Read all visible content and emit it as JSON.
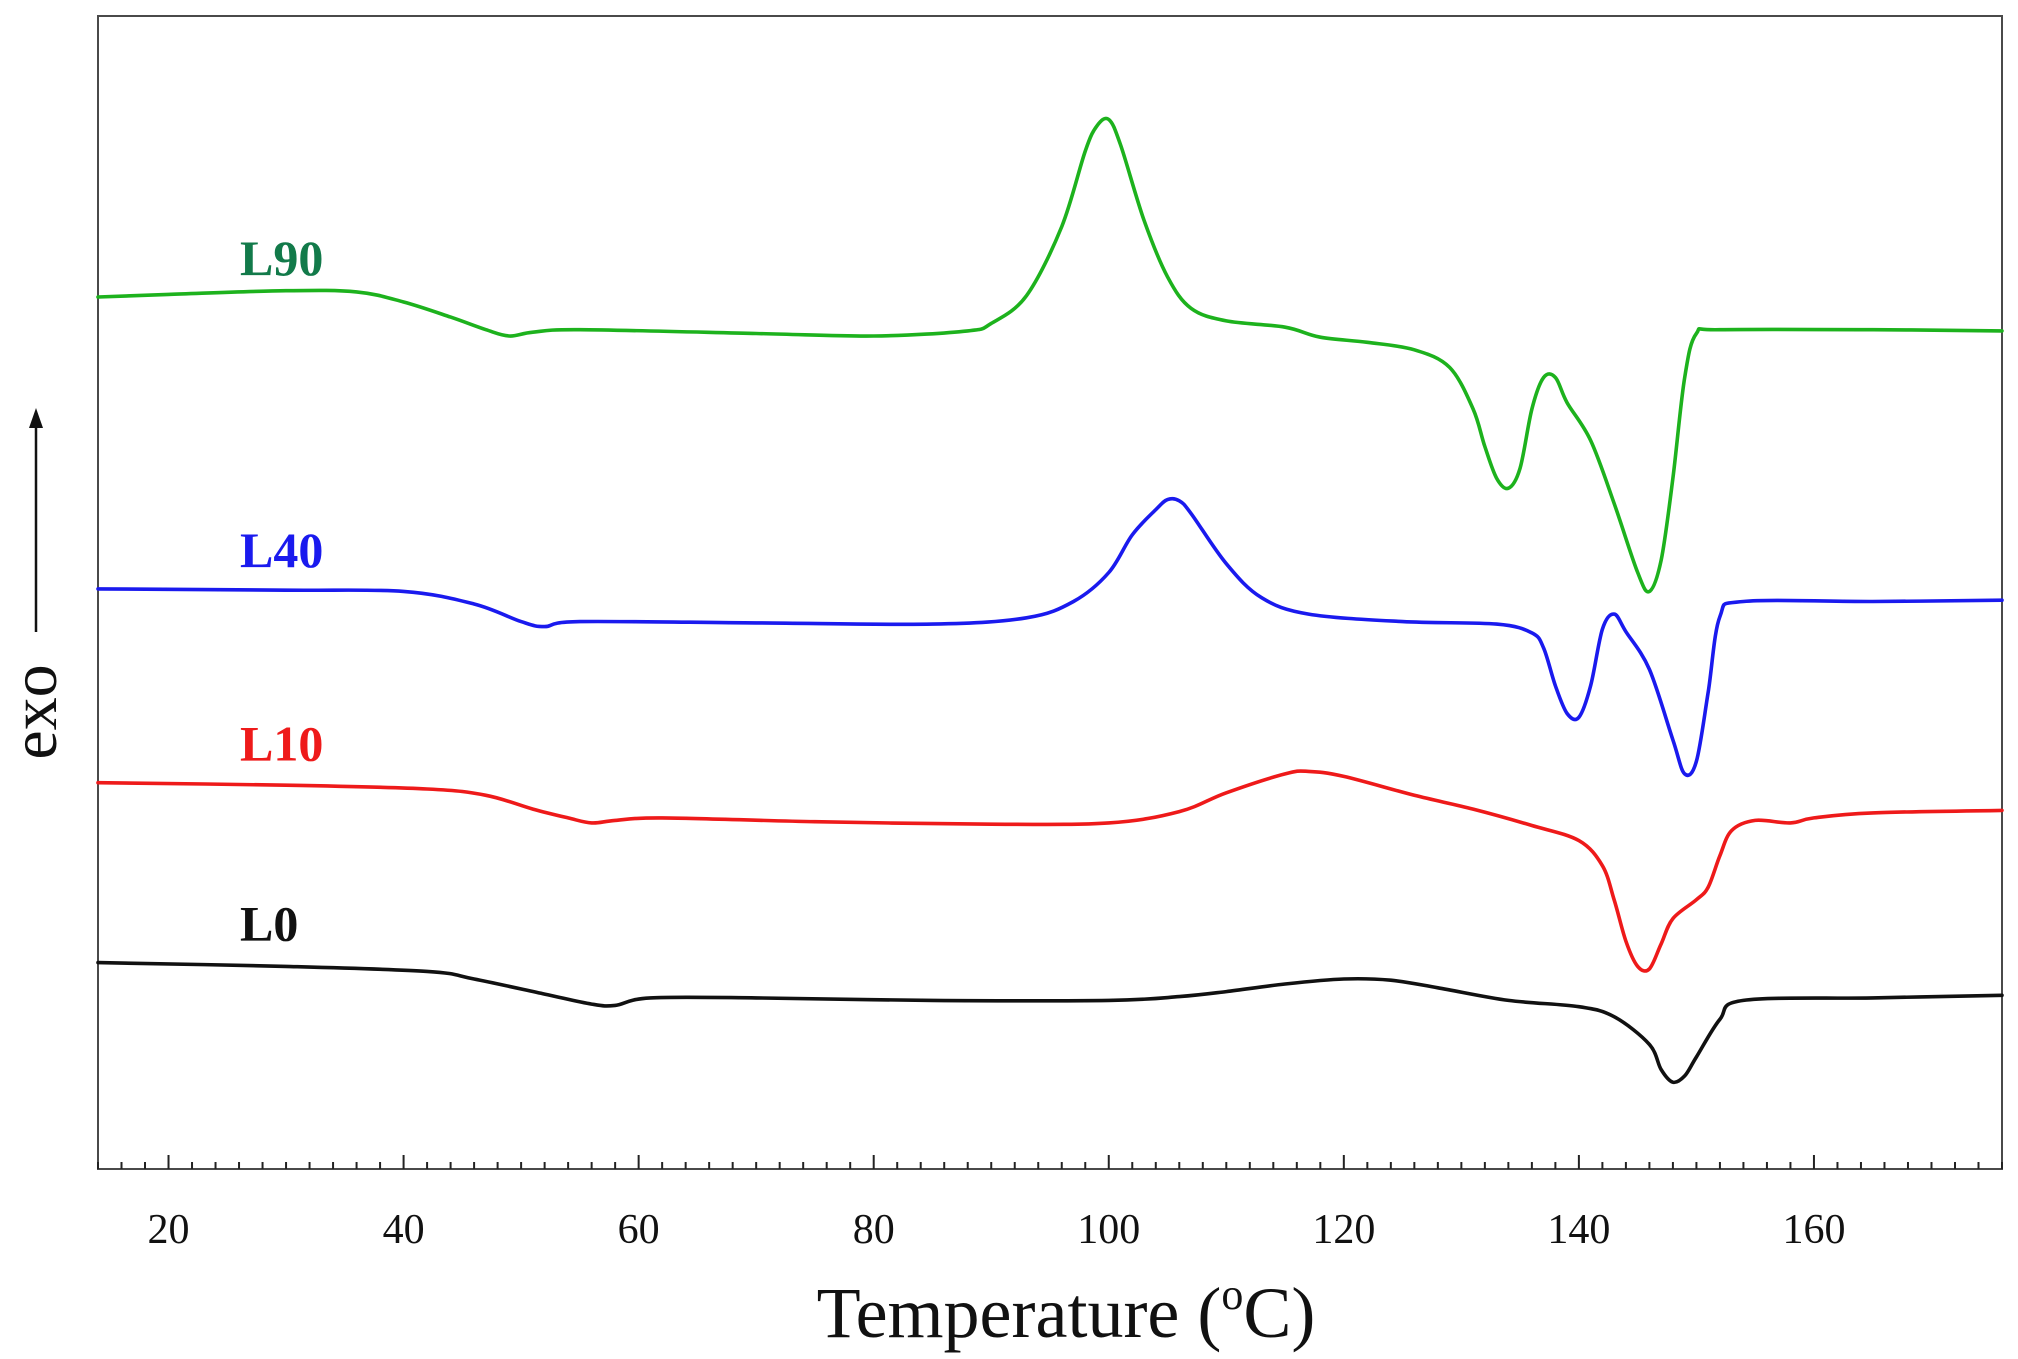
{
  "chart_data": {
    "type": "line",
    "title": "",
    "xlabel": "Temperature (",
    "xlabel_sup": "o",
    "xlabel_tail": "C)",
    "ylabel": "exo",
    "xlim": [
      14,
      176
    ],
    "xticks": [
      20,
      40,
      60,
      80,
      100,
      120,
      140,
      160
    ],
    "y_units": "arbitrary (heat flow, exo up)",
    "series": [
      {
        "name": "L90",
        "color": "#1db21d",
        "label_color": "#127a4a",
        "points": [
          [
            14,
            236
          ],
          [
            20,
            234
          ],
          [
            30,
            231
          ],
          [
            36,
            232
          ],
          [
            40,
            240
          ],
          [
            44,
            252
          ],
          [
            47,
            262
          ],
          [
            49,
            267
          ],
          [
            51,
            264
          ],
          [
            55,
            262
          ],
          [
            70,
            265
          ],
          [
            80,
            267
          ],
          [
            88,
            263
          ],
          [
            90,
            257
          ],
          [
            93,
            235
          ],
          [
            96,
            180
          ],
          [
            98,
            120
          ],
          [
            99,
            100
          ],
          [
            100,
            95
          ],
          [
            101,
            115
          ],
          [
            103,
            175
          ],
          [
            105,
            220
          ],
          [
            107,
            245
          ],
          [
            110,
            255
          ],
          [
            115,
            260
          ],
          [
            118,
            268
          ],
          [
            122,
            272
          ],
          [
            126,
            278
          ],
          [
            129,
            292
          ],
          [
            131,
            325
          ],
          [
            132,
            355
          ],
          [
            133,
            380
          ],
          [
            134,
            388
          ],
          [
            135,
            372
          ],
          [
            136,
            325
          ],
          [
            137,
            300
          ],
          [
            138,
            300
          ],
          [
            139,
            320
          ],
          [
            141,
            350
          ],
          [
            143,
            400
          ],
          [
            145,
            455
          ],
          [
            146,
            470
          ],
          [
            147,
            445
          ],
          [
            148,
            380
          ],
          [
            149,
            300
          ],
          [
            150,
            265
          ],
          [
            152,
            262
          ],
          [
            165,
            262
          ],
          [
            176,
            263
          ]
        ]
      },
      {
        "name": "L40",
        "color": "#1a1aee",
        "label_color": "#1a1aee",
        "points": [
          [
            14,
            468
          ],
          [
            30,
            469
          ],
          [
            40,
            470
          ],
          [
            46,
            480
          ],
          [
            50,
            494
          ],
          [
            52,
            498
          ],
          [
            55,
            494
          ],
          [
            70,
            495
          ],
          [
            85,
            496
          ],
          [
            93,
            491
          ],
          [
            97,
            478
          ],
          [
            100,
            455
          ],
          [
            102,
            425
          ],
          [
            104,
            405
          ],
          [
            105,
            397
          ],
          [
            106,
            398
          ],
          [
            107,
            408
          ],
          [
            110,
            448
          ],
          [
            113,
            475
          ],
          [
            117,
            488
          ],
          [
            125,
            494
          ],
          [
            133,
            496
          ],
          [
            136,
            503
          ],
          [
            137,
            515
          ],
          [
            138,
            545
          ],
          [
            139,
            567
          ],
          [
            140,
            570
          ],
          [
            141,
            545
          ],
          [
            142,
            500
          ],
          [
            143,
            488
          ],
          [
            144,
            502
          ],
          [
            146,
            532
          ],
          [
            148,
            588
          ],
          [
            149,
            615
          ],
          [
            150,
            605
          ],
          [
            151,
            550
          ],
          [
            152,
            490
          ],
          [
            154,
            478
          ],
          [
            165,
            478
          ],
          [
            176,
            477
          ]
        ]
      },
      {
        "name": "L10",
        "color": "#ee1a1a",
        "label_color": "#ee1a1a",
        "points": [
          [
            14,
            622
          ],
          [
            30,
            624
          ],
          [
            42,
            627
          ],
          [
            47,
            632
          ],
          [
            51,
            643
          ],
          [
            54,
            650
          ],
          [
            56,
            654
          ],
          [
            58,
            652
          ],
          [
            62,
            650
          ],
          [
            75,
            653
          ],
          [
            90,
            655
          ],
          [
            100,
            654
          ],
          [
            106,
            645
          ],
          [
            110,
            630
          ],
          [
            115,
            615
          ],
          [
            117,
            613
          ],
          [
            120,
            617
          ],
          [
            126,
            632
          ],
          [
            131,
            643
          ],
          [
            136,
            656
          ],
          [
            140,
            668
          ],
          [
            142,
            688
          ],
          [
            143,
            715
          ],
          [
            144,
            748
          ],
          [
            145,
            768
          ],
          [
            146,
            770
          ],
          [
            147,
            750
          ],
          [
            148,
            730
          ],
          [
            150,
            715
          ],
          [
            151,
            705
          ],
          [
            152,
            680
          ],
          [
            153,
            660
          ],
          [
            155,
            652
          ],
          [
            158,
            654
          ],
          [
            160,
            650
          ],
          [
            165,
            646
          ],
          [
            176,
            644
          ]
        ]
      },
      {
        "name": "L0",
        "color": "#111111",
        "label_color": "#111111",
        "points": [
          [
            14,
            765
          ],
          [
            30,
            768
          ],
          [
            42,
            772
          ],
          [
            46,
            778
          ],
          [
            52,
            790
          ],
          [
            56,
            798
          ],
          [
            58,
            799
          ],
          [
            61,
            793
          ],
          [
            70,
            793
          ],
          [
            85,
            795
          ],
          [
            100,
            795
          ],
          [
            106,
            792
          ],
          [
            110,
            788
          ],
          [
            115,
            782
          ],
          [
            120,
            778
          ],
          [
            124,
            779
          ],
          [
            128,
            785
          ],
          [
            134,
            795
          ],
          [
            140,
            800
          ],
          [
            143,
            808
          ],
          [
            146,
            830
          ],
          [
            147,
            850
          ],
          [
            148,
            860
          ],
          [
            149,
            855
          ],
          [
            150,
            840
          ],
          [
            152,
            810
          ],
          [
            154,
            795
          ],
          [
            165,
            793
          ],
          [
            176,
            791
          ]
        ]
      }
    ]
  }
}
